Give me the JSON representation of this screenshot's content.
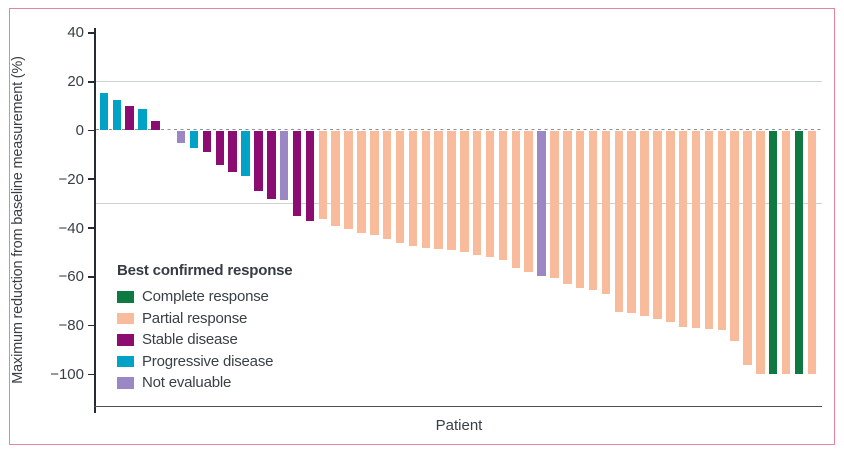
{
  "figure": {
    "legend_title": "Best confirmed response"
  },
  "colors": {
    "page_border_pink": "#e6849e",
    "axis": "#262b31",
    "x_axis": "#4a4f55",
    "gridline": "#cdd1d4",
    "zero_line": "#8b939a",
    "text": "#3a4047",
    "complete_response_green": "#0e7a42",
    "partial_response_salmon": "#f8bb9c",
    "stable_disease_magenta": "#8c0d72",
    "progressive_disease_teal": "#00a3c6",
    "not_evaluable_lilac": "#9b87c4"
  },
  "chart_data": {
    "type": "bar",
    "subtype": "waterfall",
    "xlabel": "Patient",
    "ylabel": "Maximum reduction from baseline measurement (%)",
    "ylim": [
      -100,
      40
    ],
    "yticks": [
      40,
      20,
      0,
      -20,
      -40,
      -60,
      -80,
      -100
    ],
    "reference_lines": [
      20,
      -30
    ],
    "zero_line_dashed": true,
    "grid": "horizontal-reference-only",
    "legend_position": "inside-lower-left",
    "legend": [
      {
        "key": "CR",
        "label": "Complete response",
        "color": "#0e7a42"
      },
      {
        "key": "PR",
        "label": "Partial response",
        "color": "#f8bb9c"
      },
      {
        "key": "SD",
        "label": "Stable disease",
        "color": "#8c0d72"
      },
      {
        "key": "PD",
        "label": "Progressive disease",
        "color": "#00a3c6"
      },
      {
        "key": "NE",
        "label": "Not evaluable",
        "color": "#9b87c4"
      }
    ],
    "patients": [
      {
        "value": 15.5,
        "response": "PD"
      },
      {
        "value": 12.5,
        "response": "PD"
      },
      {
        "value": 10,
        "response": "SD"
      },
      {
        "value": 9,
        "response": "PD"
      },
      {
        "value": 4,
        "response": "SD"
      },
      {
        "value": 0,
        "response": "NONE"
      },
      {
        "value": -5,
        "response": "NE"
      },
      {
        "value": -7,
        "response": "PD"
      },
      {
        "value": -9,
        "response": "SD"
      },
      {
        "value": -14,
        "response": "SD"
      },
      {
        "value": -17,
        "response": "SD"
      },
      {
        "value": -18.5,
        "response": "PD"
      },
      {
        "value": -25,
        "response": "SD"
      },
      {
        "value": -28,
        "response": "SD"
      },
      {
        "value": -28.5,
        "response": "NE"
      },
      {
        "value": -35,
        "response": "SD"
      },
      {
        "value": -37,
        "response": "SD"
      },
      {
        "value": -36.5,
        "response": "PR"
      },
      {
        "value": -39,
        "response": "PR"
      },
      {
        "value": -40.5,
        "response": "PR"
      },
      {
        "value": -42,
        "response": "PR"
      },
      {
        "value": -43,
        "response": "PR"
      },
      {
        "value": -44.5,
        "response": "PR"
      },
      {
        "value": -46,
        "response": "PR"
      },
      {
        "value": -47.5,
        "response": "PR"
      },
      {
        "value": -48,
        "response": "PR"
      },
      {
        "value": -48.5,
        "response": "PR"
      },
      {
        "value": -49,
        "response": "PR"
      },
      {
        "value": -50,
        "response": "PR"
      },
      {
        "value": -51,
        "response": "PR"
      },
      {
        "value": -52,
        "response": "PR"
      },
      {
        "value": -53,
        "response": "PR"
      },
      {
        "value": -56.5,
        "response": "PR"
      },
      {
        "value": -58,
        "response": "PR"
      },
      {
        "value": -59.5,
        "response": "NE"
      },
      {
        "value": -60.5,
        "response": "PR"
      },
      {
        "value": -63,
        "response": "PR"
      },
      {
        "value": -64.5,
        "response": "PR"
      },
      {
        "value": -65.5,
        "response": "PR"
      },
      {
        "value": -67,
        "response": "PR"
      },
      {
        "value": -74.5,
        "response": "PR"
      },
      {
        "value": -75,
        "response": "PR"
      },
      {
        "value": -76,
        "response": "PR"
      },
      {
        "value": -77.5,
        "response": "PR"
      },
      {
        "value": -78.5,
        "response": "PR"
      },
      {
        "value": -80.5,
        "response": "PR"
      },
      {
        "value": -81,
        "response": "PR"
      },
      {
        "value": -81.5,
        "response": "PR"
      },
      {
        "value": -82,
        "response": "PR"
      },
      {
        "value": -86.5,
        "response": "PR"
      },
      {
        "value": -96,
        "response": "PR"
      },
      {
        "value": -100,
        "response": "PR"
      },
      {
        "value": -100,
        "response": "CR"
      },
      {
        "value": -100,
        "response": "PR"
      },
      {
        "value": -100,
        "response": "CR"
      },
      {
        "value": -100,
        "response": "PR"
      }
    ]
  }
}
